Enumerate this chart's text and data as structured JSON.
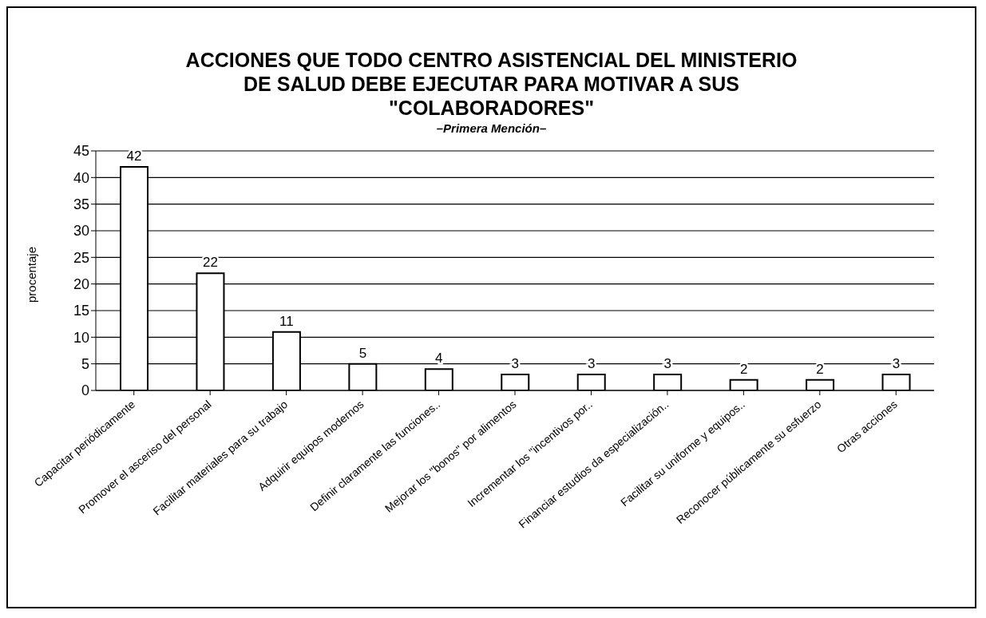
{
  "chart_data": {
    "type": "bar",
    "title": "ACCIONES QUE TODO CENTRO ASISTENCIAL DEL MINISTERIO\nDE SALUD DEBE EJECUTAR PARA MOTIVAR A SUS\n\"COLABORADORES\"",
    "subtitle": "–Primera Mención–",
    "ylabel": "procentaje",
    "categories": [
      "Capacitar periódicamente",
      "Promover el asceriso del personal",
      "Facilitar materiales para su trabajo",
      "Adquirir equipos modernos",
      "Definir claramente las funciones..",
      "Mejorar los \"bonos\" por alimentos",
      "Incrementar los \"incentivos por..",
      "Financiar estudios da especialización..",
      "Facilitar su uniforme y equipos..",
      "Reconocer públicamente su esfuerzo",
      "Otras acciones"
    ],
    "values": [
      42,
      22,
      11,
      5,
      4,
      3,
      3,
      3,
      2,
      2,
      3
    ],
    "color": "#ffffff",
    "ylim": [
      0,
      45
    ],
    "yticks": [
      0,
      5,
      10,
      15,
      20,
      25,
      30,
      35,
      40,
      45
    ],
    "grid": "y",
    "data_labels": true
  }
}
